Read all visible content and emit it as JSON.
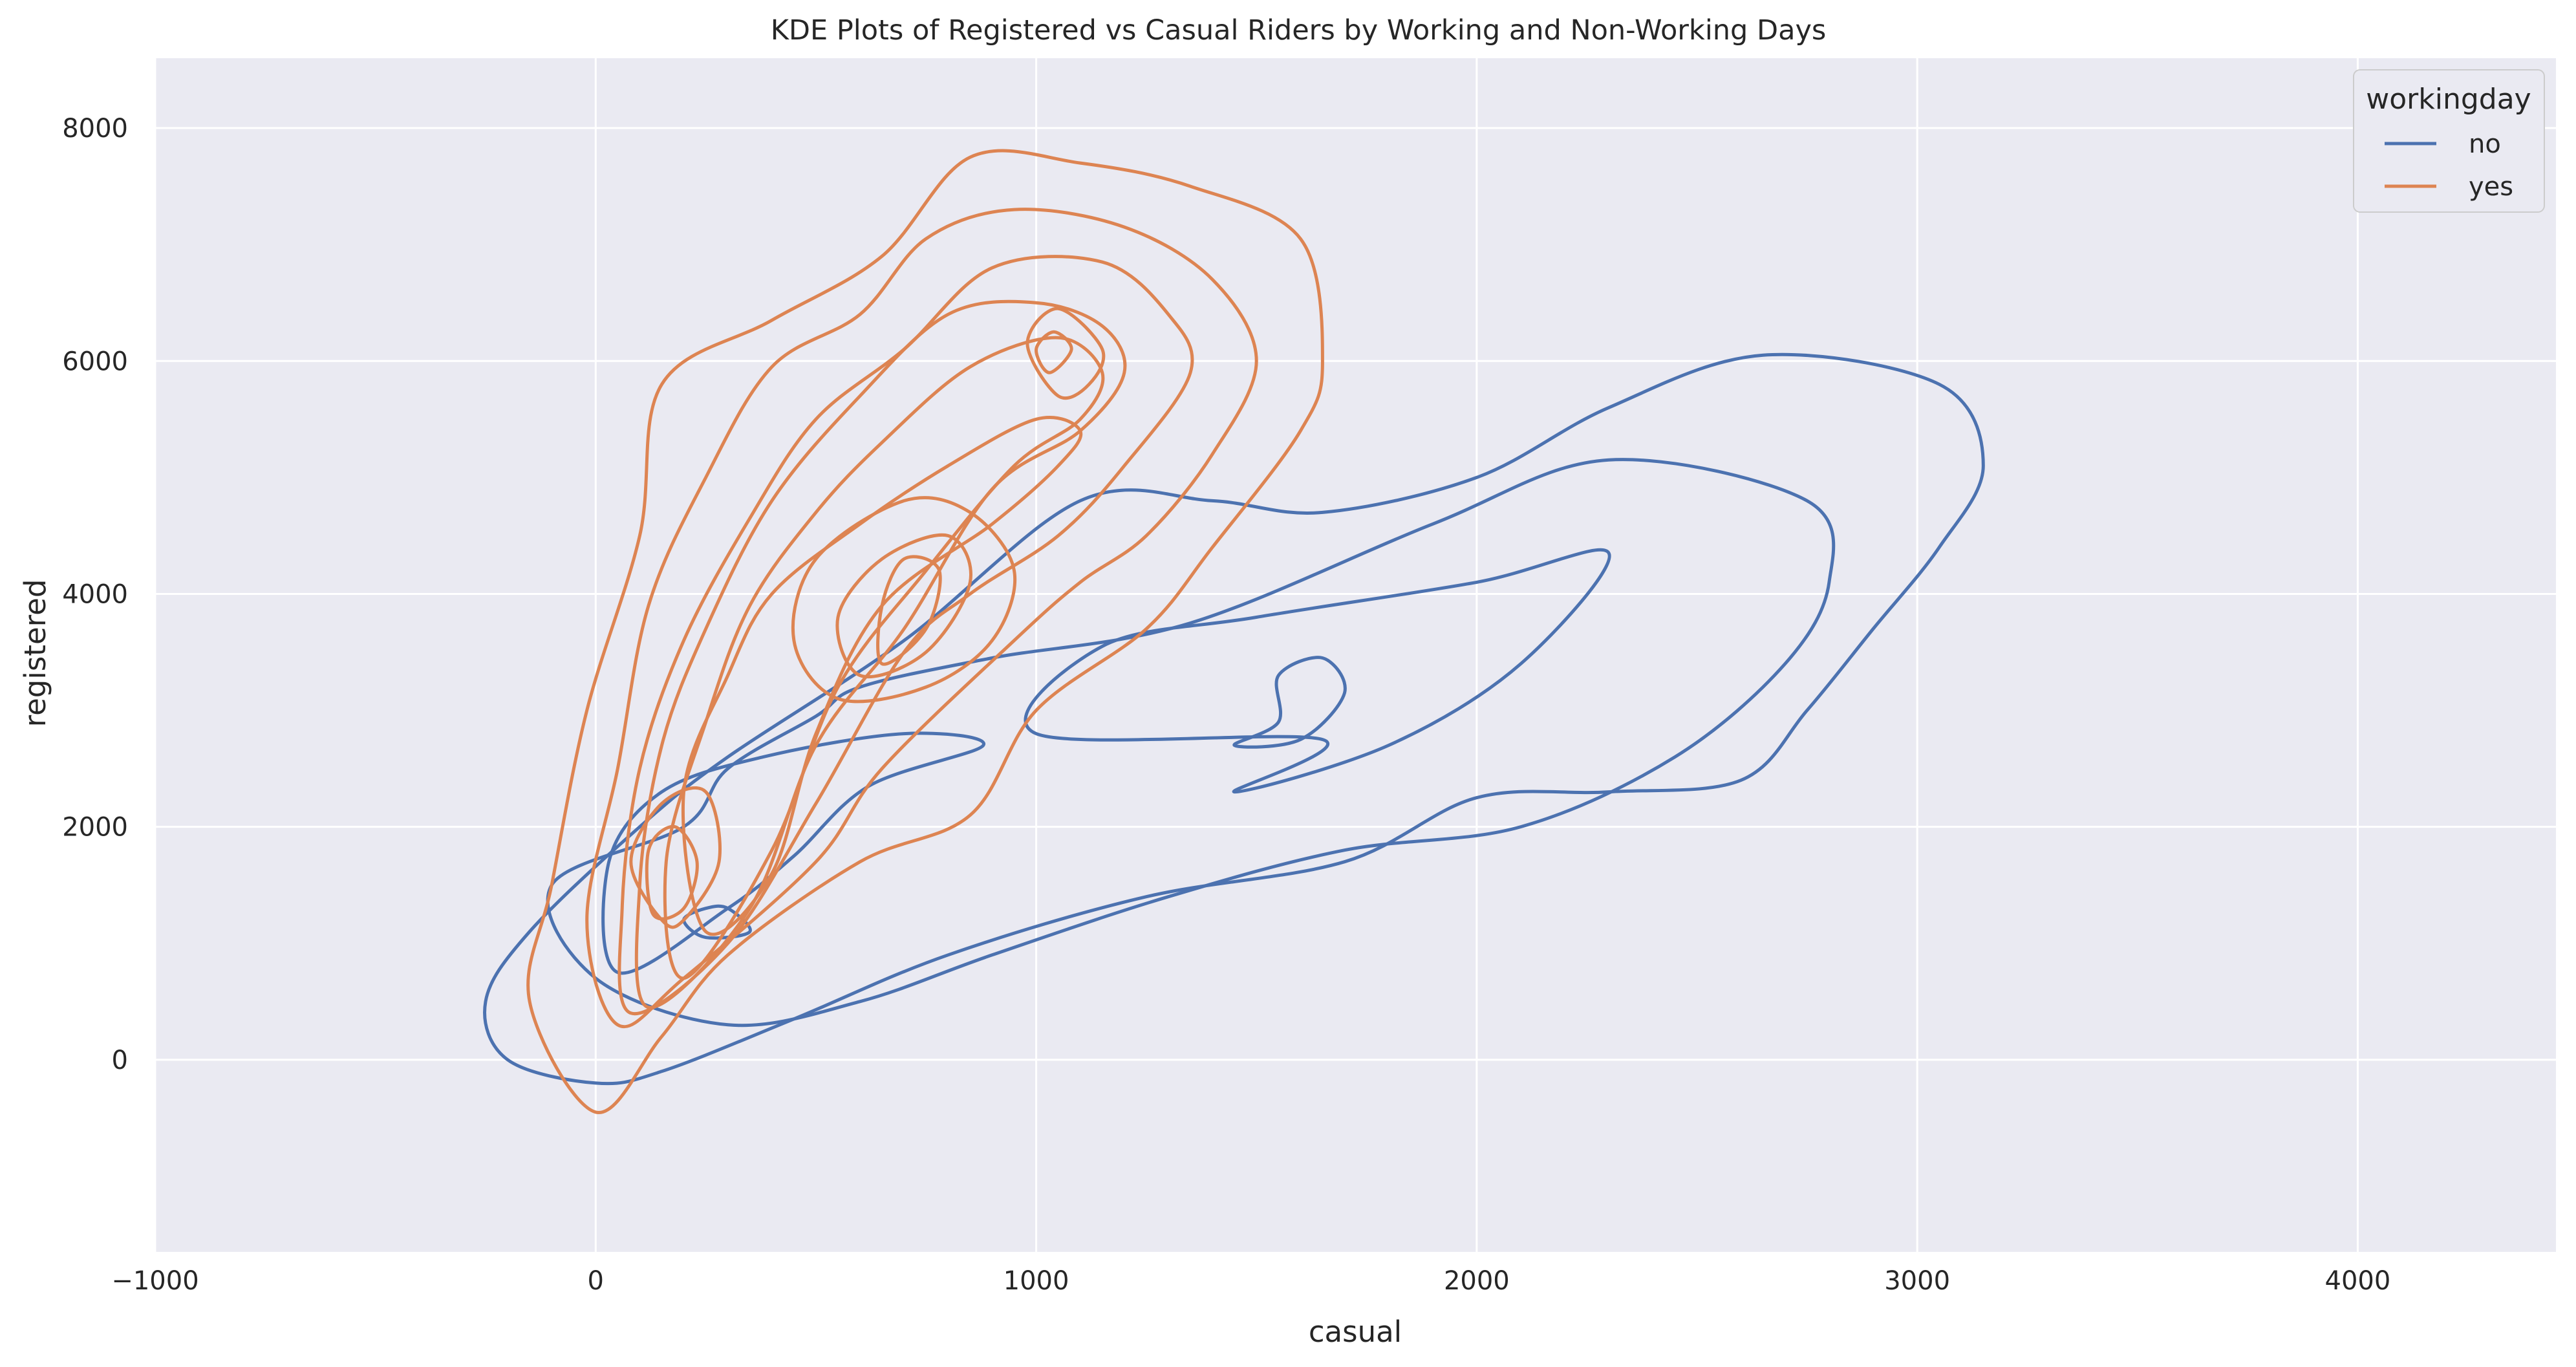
{
  "chart_data": {
    "type": "kde_contour",
    "title": "KDE Plots of Registered vs Casual Riders by Working and Non-Working Days",
    "xlabel": "casual",
    "ylabel": "registered",
    "xlim": [
      -1000,
      4450
    ],
    "ylim": [
      -1650,
      8600
    ],
    "xticks": [
      -1000,
      0,
      1000,
      2000,
      3000,
      4000
    ],
    "xtick_labels": [
      "−1000",
      "0",
      "1000",
      "2000",
      "3000",
      "4000"
    ],
    "yticks": [
      0,
      2000,
      4000,
      6000,
      8000
    ],
    "ytick_labels": [
      "0",
      "2000",
      "4000",
      "6000",
      "8000"
    ],
    "grid": true,
    "background": "#eaeaf2",
    "legend": {
      "title": "workingday",
      "position": "top-right"
    },
    "series": [
      {
        "name": "no",
        "color": "#4c72b0",
        "contours": [
          [
            [
              0,
              -200
            ],
            [
              -200,
              0
            ],
            [
              -250,
              500
            ],
            [
              -150,
              1100
            ],
            [
              100,
              2000
            ],
            [
              300,
              2600
            ],
            [
              700,
              3600
            ],
            [
              1100,
              4800
            ],
            [
              1400,
              4800
            ],
            [
              1650,
              4700
            ],
            [
              2000,
              5000
            ],
            [
              2300,
              5600
            ],
            [
              2650,
              6050
            ],
            [
              3050,
              5800
            ],
            [
              3150,
              5100
            ],
            [
              3050,
              4400
            ],
            [
              2900,
              3700
            ],
            [
              2750,
              3000
            ],
            [
              2600,
              2400
            ],
            [
              2300,
              2300
            ],
            [
              2000,
              2250
            ],
            [
              1700,
              1700
            ],
            [
              1250,
              1400
            ],
            [
              800,
              900
            ],
            [
              450,
              350
            ],
            [
              150,
              -100
            ]
          ],
          [
            [
              200,
              2000
            ],
            [
              -100,
              1500
            ],
            [
              0,
              700
            ],
            [
              300,
              300
            ],
            [
              600,
              500
            ],
            [
              900,
              900
            ],
            [
              1300,
              1400
            ],
            [
              1700,
              1800
            ],
            [
              2100,
              2000
            ],
            [
              2450,
              2600
            ],
            [
              2700,
              3400
            ],
            [
              2800,
              4100
            ],
            [
              2750,
              4800
            ],
            [
              2300,
              5150
            ],
            [
              1900,
              4600
            ],
            [
              1350,
              3750
            ],
            [
              900,
              3450
            ],
            [
              600,
              3200
            ],
            [
              500,
              2950
            ],
            [
              300,
              2500
            ]
          ],
          [
            [
              50,
              750
            ],
            [
              300,
              1300
            ],
            [
              450,
              1750
            ],
            [
              620,
              2350
            ],
            [
              880,
              2700
            ],
            [
              700,
              2800
            ],
            [
              380,
              2600
            ],
            [
              150,
              2300
            ],
            [
              30,
              1700
            ]
          ],
          [
            [
              1650,
              2750
            ],
            [
              1450,
              2300
            ],
            [
              1800,
              2700
            ],
            [
              2100,
              3400
            ],
            [
              2300,
              4350
            ],
            [
              2000,
              4100
            ],
            [
              1500,
              3800
            ],
            [
              1150,
              3550
            ],
            [
              1000,
              2800
            ]
          ],
          [
            [
              1550,
              2900
            ],
            [
              1450,
              2700
            ],
            [
              1600,
              2750
            ],
            [
              1700,
              3150
            ],
            [
              1650,
              3450
            ],
            [
              1550,
              3300
            ]
          ],
          [
            [
              350,
              1100
            ],
            [
              250,
              1050
            ],
            [
              200,
              1200
            ],
            [
              250,
              1300
            ],
            [
              300,
              1300
            ]
          ]
        ]
      },
      {
        "name": "yes",
        "color": "#dd8452",
        "contours": [
          [
            [
              0,
              -450
            ],
            [
              -150,
              500
            ],
            [
              -100,
              1500
            ],
            [
              -20,
              3000
            ],
            [
              100,
              4500
            ],
            [
              150,
              5800
            ],
            [
              400,
              6350
            ],
            [
              650,
              6900
            ],
            [
              850,
              7750
            ],
            [
              1100,
              7700
            ],
            [
              1350,
              7500
            ],
            [
              1600,
              7050
            ],
            [
              1650,
              6000
            ],
            [
              1600,
              5400
            ],
            [
              1400,
              4400
            ],
            [
              1250,
              3700
            ],
            [
              1000,
              3000
            ],
            [
              850,
              2100
            ],
            [
              600,
              1700
            ],
            [
              300,
              900
            ],
            [
              150,
              200
            ]
          ],
          [
            [
              50,
              300
            ],
            [
              -20,
              1200
            ],
            [
              50,
              2500
            ],
            [
              120,
              3900
            ],
            [
              250,
              5000
            ],
            [
              400,
              5950
            ],
            [
              600,
              6400
            ],
            [
              750,
              7050
            ],
            [
              950,
              7300
            ],
            [
              1200,
              7150
            ],
            [
              1400,
              6700
            ],
            [
              1500,
              6000
            ],
            [
              1400,
              5200
            ],
            [
              1250,
              4500
            ],
            [
              1100,
              4100
            ],
            [
              950,
              3600
            ],
            [
              650,
              2500
            ],
            [
              500,
              1700
            ],
            [
              200,
              700
            ]
          ],
          [
            [
              80,
              400
            ],
            [
              60,
              1300
            ],
            [
              100,
              2500
            ],
            [
              200,
              3600
            ],
            [
              350,
              4650
            ],
            [
              500,
              5500
            ],
            [
              700,
              6100
            ],
            [
              900,
              6800
            ],
            [
              1150,
              6850
            ],
            [
              1300,
              6400
            ],
            [
              1350,
              5900
            ],
            [
              1200,
              5100
            ],
            [
              1050,
              4500
            ],
            [
              850,
              4000
            ],
            [
              700,
              3500
            ],
            [
              500,
              2200
            ],
            [
              300,
              1000
            ]
          ],
          [
            [
              120,
              450
            ],
            [
              100,
              1500
            ],
            [
              150,
              2700
            ],
            [
              250,
              3700
            ],
            [
              400,
              4800
            ],
            [
              600,
              5700
            ],
            [
              800,
              6400
            ],
            [
              1000,
              6500
            ],
            [
              1150,
              6300
            ],
            [
              1200,
              5900
            ],
            [
              1100,
              5400
            ],
            [
              900,
              4900
            ],
            [
              700,
              3700
            ],
            [
              500,
              2700
            ],
            [
              350,
              1300
            ]
          ],
          [
            [
              200,
              700
            ],
            [
              160,
              1700
            ],
            [
              250,
              2900
            ],
            [
              350,
              3900
            ],
            [
              500,
              4700
            ],
            [
              650,
              5300
            ],
            [
              850,
              5950
            ],
            [
              1050,
              6200
            ],
            [
              1150,
              5900
            ],
            [
              1100,
              5500
            ],
            [
              950,
              5100
            ],
            [
              750,
              4200
            ],
            [
              550,
              3200
            ],
            [
              400,
              1800
            ]
          ],
          [
            [
              250,
              1100
            ],
            [
              200,
              2300
            ],
            [
              300,
              3300
            ],
            [
              400,
              4000
            ],
            [
              600,
              4600
            ],
            [
              800,
              5100
            ],
            [
              1000,
              5500
            ],
            [
              1100,
              5400
            ],
            [
              1050,
              5100
            ],
            [
              900,
              4600
            ],
            [
              650,
              3900
            ],
            [
              500,
              2800
            ],
            [
              400,
              1600
            ]
          ],
          [
            [
              550,
              3100
            ],
            [
              450,
              3600
            ],
            [
              500,
              4300
            ],
            [
              700,
              4800
            ],
            [
              850,
              4700
            ],
            [
              950,
              4200
            ],
            [
              900,
              3600
            ],
            [
              750,
              3200
            ]
          ],
          [
            [
              600,
              3300
            ],
            [
              550,
              3800
            ],
            [
              650,
              4300
            ],
            [
              800,
              4500
            ],
            [
              850,
              4100
            ],
            [
              750,
              3500
            ]
          ],
          [
            [
              650,
              3400
            ],
            [
              650,
              3900
            ],
            [
              700,
              4300
            ],
            [
              780,
              4200
            ],
            [
              750,
              3700
            ]
          ],
          [
            [
              1050,
              5700
            ],
            [
              980,
              6150
            ],
            [
              1050,
              6450
            ],
            [
              1150,
              6100
            ],
            [
              1120,
              5800
            ]
          ],
          [
            [
              1030,
              5900
            ],
            [
              1000,
              6100
            ],
            [
              1040,
              6250
            ],
            [
              1080,
              6100
            ]
          ],
          [
            [
              150,
              1200
            ],
            [
              80,
              1700
            ],
            [
              150,
              2200
            ],
            [
              250,
              2300
            ],
            [
              280,
              1700
            ],
            [
              200,
              1200
            ]
          ],
          [
            [
              130,
              1250
            ],
            [
              120,
              1800
            ],
            [
              180,
              2000
            ],
            [
              230,
              1700
            ],
            [
              200,
              1300
            ]
          ]
        ]
      }
    ]
  }
}
